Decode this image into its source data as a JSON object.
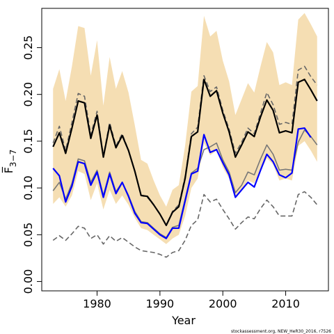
{
  "chart_data": {
    "type": "line",
    "xlabel": "Year",
    "ylabel": "F̅",
    "ylabel_subscript": "3−7",
    "caption": "stockassessment.org, NEW_HeR30_2016, r7526",
    "xlim": [
      1971.2,
      2016.8
    ],
    "ylim": [
      -0.01,
      0.292
    ],
    "x_ticks": [
      1980,
      1990,
      2000,
      2010
    ],
    "x_tick_labels": [
      "1980",
      "1990",
      "2000",
      "2010"
    ],
    "y_ticks": [
      0.0,
      0.05,
      0.1,
      0.15,
      0.2,
      0.25
    ],
    "y_tick_labels": [
      "0.00",
      "0.05",
      "0.10",
      "0.15",
      "0.20",
      "0.25"
    ],
    "x": [
      1973,
      1974,
      1975,
      1976,
      1977,
      1978,
      1979,
      1980,
      1981,
      1982,
      1983,
      1984,
      1985,
      1986,
      1987,
      1988,
      1989,
      1990,
      1991,
      1992,
      1993,
      1994,
      1995,
      1996,
      1997,
      1998,
      1999,
      2000,
      2001,
      2002,
      2003,
      2004,
      2005,
      2006,
      2007,
      2008,
      2009,
      2010,
      2011,
      2012,
      2013,
      2014,
      2015
    ],
    "band": {
      "color": "#f5deb3",
      "upper": [
        0.206,
        0.227,
        0.193,
        0.23,
        0.273,
        0.271,
        0.22,
        0.258,
        0.188,
        0.24,
        0.206,
        0.225,
        0.202,
        0.167,
        0.13,
        0.126,
        0.108,
        0.092,
        0.08,
        0.098,
        0.103,
        0.145,
        0.203,
        0.209,
        0.284,
        0.262,
        0.268,
        0.236,
        0.214,
        0.178,
        0.195,
        0.212,
        0.202,
        0.23,
        0.256,
        0.245,
        0.21,
        0.213,
        0.21,
        0.28,
        0.287,
        0.275,
        0.262
      ],
      "lower": [
        0.083,
        0.09,
        0.08,
        0.092,
        0.118,
        0.115,
        0.087,
        0.105,
        0.077,
        0.098,
        0.083,
        0.092,
        0.082,
        0.068,
        0.057,
        0.055,
        0.05,
        0.045,
        0.04,
        0.046,
        0.05,
        0.07,
        0.1,
        0.11,
        0.148,
        0.135,
        0.14,
        0.122,
        0.11,
        0.09,
        0.098,
        0.108,
        0.105,
        0.118,
        0.132,
        0.125,
        0.108,
        0.11,
        0.108,
        0.145,
        0.15,
        0.14,
        0.128
      ]
    },
    "series": [
      {
        "color": "#000000",
        "style": "solid",
        "width": 2.2,
        "values": [
          0.144,
          0.159,
          0.137,
          0.164,
          0.193,
          0.191,
          0.153,
          0.178,
          0.133,
          0.167,
          0.143,
          0.156,
          0.14,
          0.118,
          0.092,
          0.091,
          0.082,
          0.072,
          0.06,
          0.074,
          0.08,
          0.11,
          0.155,
          0.16,
          0.216,
          0.198,
          0.204,
          0.18,
          0.16,
          0.133,
          0.146,
          0.16,
          0.155,
          0.176,
          0.194,
          0.183,
          0.159,
          0.161,
          0.159,
          0.213,
          0.216,
          0.205,
          0.193
        ]
      },
      {
        "color": "#666666",
        "style": "dashed",
        "width": 1.6,
        "values": [
          0.148,
          0.166,
          0.14,
          0.17,
          0.201,
          0.198,
          0.157,
          0.182,
          0.134,
          0.17,
          0.145,
          0.158,
          0.14,
          0.118,
          0.092,
          0.09,
          0.082,
          0.072,
          0.06,
          0.075,
          0.082,
          0.112,
          0.158,
          0.165,
          0.22,
          0.203,
          0.208,
          0.183,
          0.163,
          0.137,
          0.149,
          0.164,
          0.158,
          0.18,
          0.202,
          0.189,
          0.168,
          0.17,
          0.168,
          0.226,
          0.23,
          0.219,
          0.21
        ]
      },
      {
        "color": "#0000ff",
        "style": "solid",
        "width": 2.2,
        "values": [
          0.121,
          0.113,
          0.085,
          0.102,
          0.128,
          0.126,
          0.103,
          0.117,
          0.09,
          0.115,
          0.094,
          0.106,
          0.091,
          0.073,
          0.063,
          0.062,
          0.056,
          0.05,
          0.046,
          0.057,
          0.057,
          0.086,
          0.115,
          0.118,
          0.157,
          0.138,
          0.141,
          0.127,
          0.114,
          0.09,
          0.098,
          0.106,
          0.101,
          0.119,
          0.136,
          0.128,
          0.114,
          0.111,
          0.116,
          0.163,
          0.164,
          0.154,
          null
        ]
      },
      {
        "color": "#777777",
        "style": "solid",
        "width": 1.6,
        "values": [
          0.097,
          0.106,
          0.088,
          0.105,
          0.131,
          0.129,
          0.106,
          0.119,
          0.092,
          0.117,
          0.096,
          0.106,
          0.092,
          0.075,
          0.064,
          0.063,
          0.057,
          0.051,
          0.047,
          0.058,
          0.06,
          0.088,
          0.116,
          0.121,
          0.141,
          0.144,
          0.148,
          0.13,
          0.117,
          0.095,
          0.103,
          0.117,
          0.114,
          0.131,
          0.146,
          0.136,
          0.119,
          0.12,
          0.119,
          0.149,
          0.162,
          0.155,
          0.146
        ]
      },
      {
        "color": "#666666",
        "style": "dashed",
        "width": 1.6,
        "values": [
          0.044,
          0.049,
          0.044,
          0.051,
          0.059,
          0.057,
          0.046,
          0.05,
          0.04,
          0.049,
          0.043,
          0.047,
          0.042,
          0.037,
          0.033,
          0.032,
          0.031,
          0.029,
          0.026,
          0.031,
          0.033,
          0.044,
          0.06,
          0.066,
          0.093,
          0.085,
          0.088,
          0.077,
          0.067,
          0.056,
          0.063,
          0.069,
          0.067,
          0.078,
          0.087,
          0.08,
          0.07,
          0.07,
          0.07,
          0.093,
          0.096,
          0.09,
          0.082
        ]
      }
    ]
  }
}
